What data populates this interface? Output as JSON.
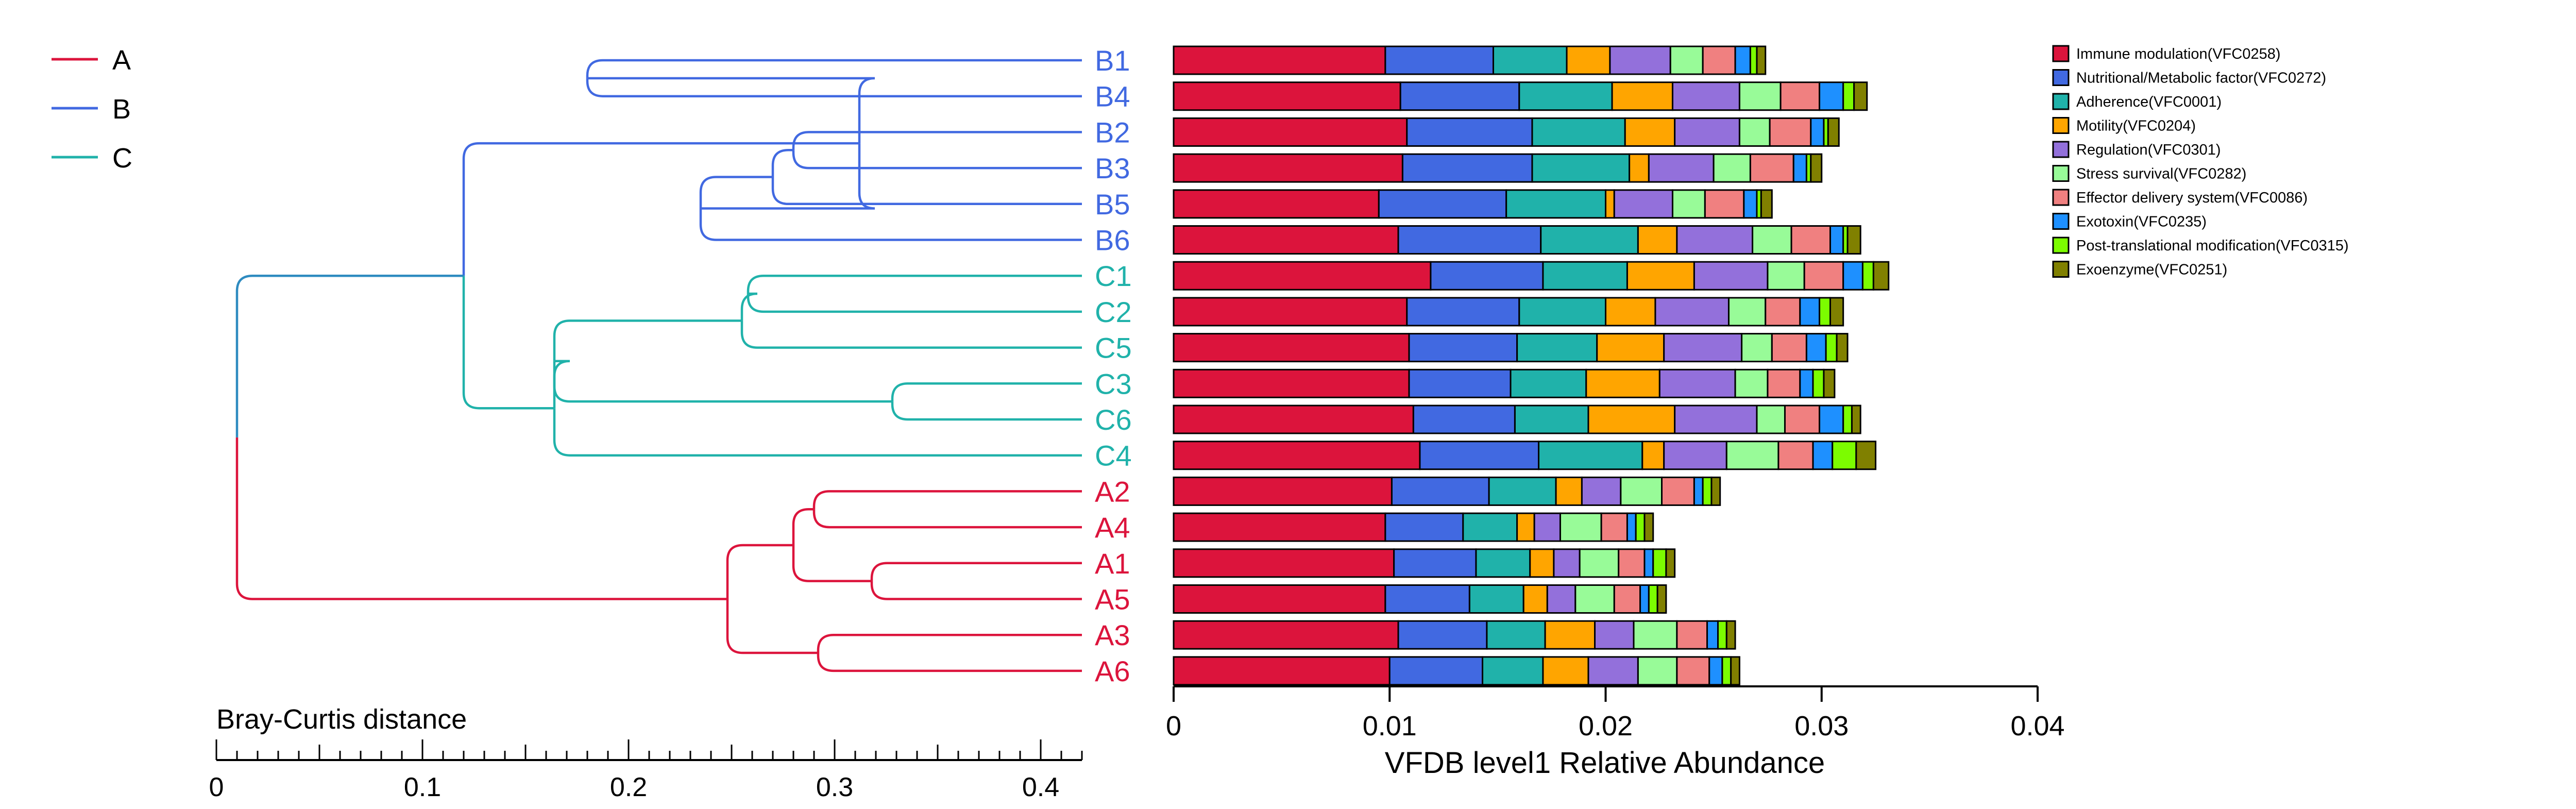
{
  "chart_data": [
    {
      "type": "dendrogram",
      "axis_label": "Bray-Curtis distance",
      "axis_ticks": [
        "0",
        "0.1",
        "0.2",
        "0.3",
        "0.4"
      ],
      "axis_range": [
        0,
        0.42
      ],
      "legend": [
        {
          "label": "A",
          "color": "#dc143c"
        },
        {
          "label": "B",
          "color": "#4169e1"
        },
        {
          "label": "C",
          "color": "#20b2aa"
        }
      ],
      "leaves": [
        "B1",
        "B4",
        "B2",
        "B3",
        "B5",
        "B6",
        "C1",
        "C2",
        "C5",
        "C3",
        "C6",
        "C4",
        "A2",
        "A4",
        "A1",
        "A5",
        "A3",
        "A6"
      ],
      "merges": [
        {
          "children": [
            "B1",
            "B4"
          ],
          "height": 0.18
        },
        {
          "children": [
            "B2",
            "B3"
          ],
          "height": 0.28
        },
        {
          "children": [
            "B2B3",
            "B5"
          ],
          "height": 0.27
        },
        {
          "children": [
            "B2B3B5",
            "B6"
          ],
          "height": 0.235
        },
        {
          "children": [
            "B1B4",
            "B2B3B5B6"
          ],
          "height": 0.312
        },
        {
          "children": [
            "C1",
            "C2"
          ],
          "height": 0.258
        },
        {
          "children": [
            "C1C2",
            "C5"
          ],
          "height": 0.255
        },
        {
          "children": [
            "C3",
            "C6"
          ],
          "height": 0.328
        },
        {
          "children": [
            "C1C2C5",
            "C3C6"
          ],
          "height": 0.164
        },
        {
          "children": [
            "C1C2C5C3C6",
            "C4"
          ],
          "height": 0.164
        },
        {
          "children": [
            "B",
            "C"
          ],
          "height": 0.12
        },
        {
          "children": [
            "A2",
            "A4"
          ],
          "height": 0.29
        },
        {
          "children": [
            "A1",
            "A5"
          ],
          "height": 0.318
        },
        {
          "children": [
            "A2A4",
            "A1A5"
          ],
          "height": 0.28
        },
        {
          "children": [
            "A3",
            "A6"
          ],
          "height": 0.292
        },
        {
          "children": [
            "A2A4A1A5",
            "A3A6"
          ],
          "height": 0.248
        },
        {
          "children": [
            "A",
            "BC"
          ],
          "height": 0.01
        }
      ]
    },
    {
      "type": "bar",
      "orientation": "horizontal",
      "stacked": true,
      "xlabel": "VFDB level1 Relative Abundance",
      "xlim": [
        0,
        0.04
      ],
      "xticks": [
        "0",
        "0.01",
        "0.02",
        "0.03",
        "0.04"
      ],
      "categories": [
        "B1",
        "B4",
        "B2",
        "B3",
        "B5",
        "B6",
        "C1",
        "C2",
        "C5",
        "C3",
        "C6",
        "C4",
        "A2",
        "A4",
        "A1",
        "A5",
        "A3",
        "A6"
      ],
      "legend_position": "top-right",
      "series": [
        {
          "name": "Immune modulation(VFC0258)",
          "color": "#dc143c",
          "values": [
            0.0098,
            0.0105,
            0.0108,
            0.0106,
            0.0095,
            0.0104,
            0.0119,
            0.0108,
            0.0109,
            0.0109,
            0.0111,
            0.0114,
            0.0101,
            0.0098,
            0.0102,
            0.0098,
            0.0104,
            0.01
          ]
        },
        {
          "name": "Nutritional/Metabolic factor(VFC0272)",
          "color": "#4169e1",
          "values": [
            0.005,
            0.0055,
            0.0058,
            0.006,
            0.0059,
            0.0066,
            0.0052,
            0.0052,
            0.005,
            0.0047,
            0.0047,
            0.0055,
            0.0045,
            0.0036,
            0.0038,
            0.0039,
            0.0041,
            0.0043
          ]
        },
        {
          "name": "Adherence(VFC0001)",
          "color": "#20b2aa",
          "values": [
            0.0034,
            0.0043,
            0.0043,
            0.0045,
            0.0046,
            0.0045,
            0.0039,
            0.004,
            0.0037,
            0.0035,
            0.0034,
            0.0048,
            0.0031,
            0.0025,
            0.0025,
            0.0025,
            0.0027,
            0.0028
          ]
        },
        {
          "name": "Motility(VFC0204)",
          "color": "#ffa500",
          "values": [
            0.002,
            0.0028,
            0.0023,
            0.0009,
            0.0004,
            0.0018,
            0.0031,
            0.0023,
            0.0031,
            0.0034,
            0.004,
            0.001,
            0.0012,
            0.0008,
            0.0011,
            0.0011,
            0.0023,
            0.0021
          ]
        },
        {
          "name": "Regulation(VFC0301)",
          "color": "#9370db",
          "values": [
            0.0028,
            0.0031,
            0.003,
            0.003,
            0.0027,
            0.0035,
            0.0034,
            0.0034,
            0.0036,
            0.0035,
            0.0038,
            0.0029,
            0.0018,
            0.0012,
            0.0012,
            0.0013,
            0.0018,
            0.0023
          ]
        },
        {
          "name": "Stress survival(VFC0282)",
          "color": "#98fb98",
          "values": [
            0.0015,
            0.0019,
            0.0014,
            0.0017,
            0.0015,
            0.0018,
            0.0017,
            0.0017,
            0.0014,
            0.0015,
            0.0013,
            0.0024,
            0.0019,
            0.0019,
            0.0018,
            0.0018,
            0.002,
            0.0018
          ]
        },
        {
          "name": "Effector delivery system(VFC0086)",
          "color": "#f08080",
          "values": [
            0.0015,
            0.0018,
            0.0019,
            0.002,
            0.0018,
            0.0018,
            0.0018,
            0.0016,
            0.0016,
            0.0015,
            0.0016,
            0.0016,
            0.0015,
            0.0012,
            0.0012,
            0.0012,
            0.0014,
            0.0015
          ]
        },
        {
          "name": "Exotoxin(VFC0235)",
          "color": "#1e90ff",
          "values": [
            0.0007,
            0.0011,
            0.0006,
            0.0006,
            0.0006,
            0.0006,
            0.0009,
            0.0009,
            0.0009,
            0.0006,
            0.0011,
            0.0009,
            0.0004,
            0.0004,
            0.0004,
            0.0004,
            0.0005,
            0.0006
          ]
        },
        {
          "name": "Post-translational modification(VFC0315)",
          "color": "#7cfc00",
          "values": [
            0.0003,
            0.0005,
            0.0002,
            0.0002,
            0.0002,
            0.0002,
            0.0005,
            0.0005,
            0.0005,
            0.0005,
            0.0004,
            0.0011,
            0.0004,
            0.0004,
            0.0006,
            0.0004,
            0.0004,
            0.0004
          ]
        },
        {
          "name": "Exoenzyme(VFC0251)",
          "color": "#808000",
          "values": [
            0.0004,
            0.0006,
            0.0005,
            0.0005,
            0.0005,
            0.0006,
            0.0007,
            0.0006,
            0.0005,
            0.0005,
            0.0004,
            0.0009,
            0.0004,
            0.0004,
            0.0004,
            0.0004,
            0.0004,
            0.0004
          ]
        }
      ]
    }
  ]
}
